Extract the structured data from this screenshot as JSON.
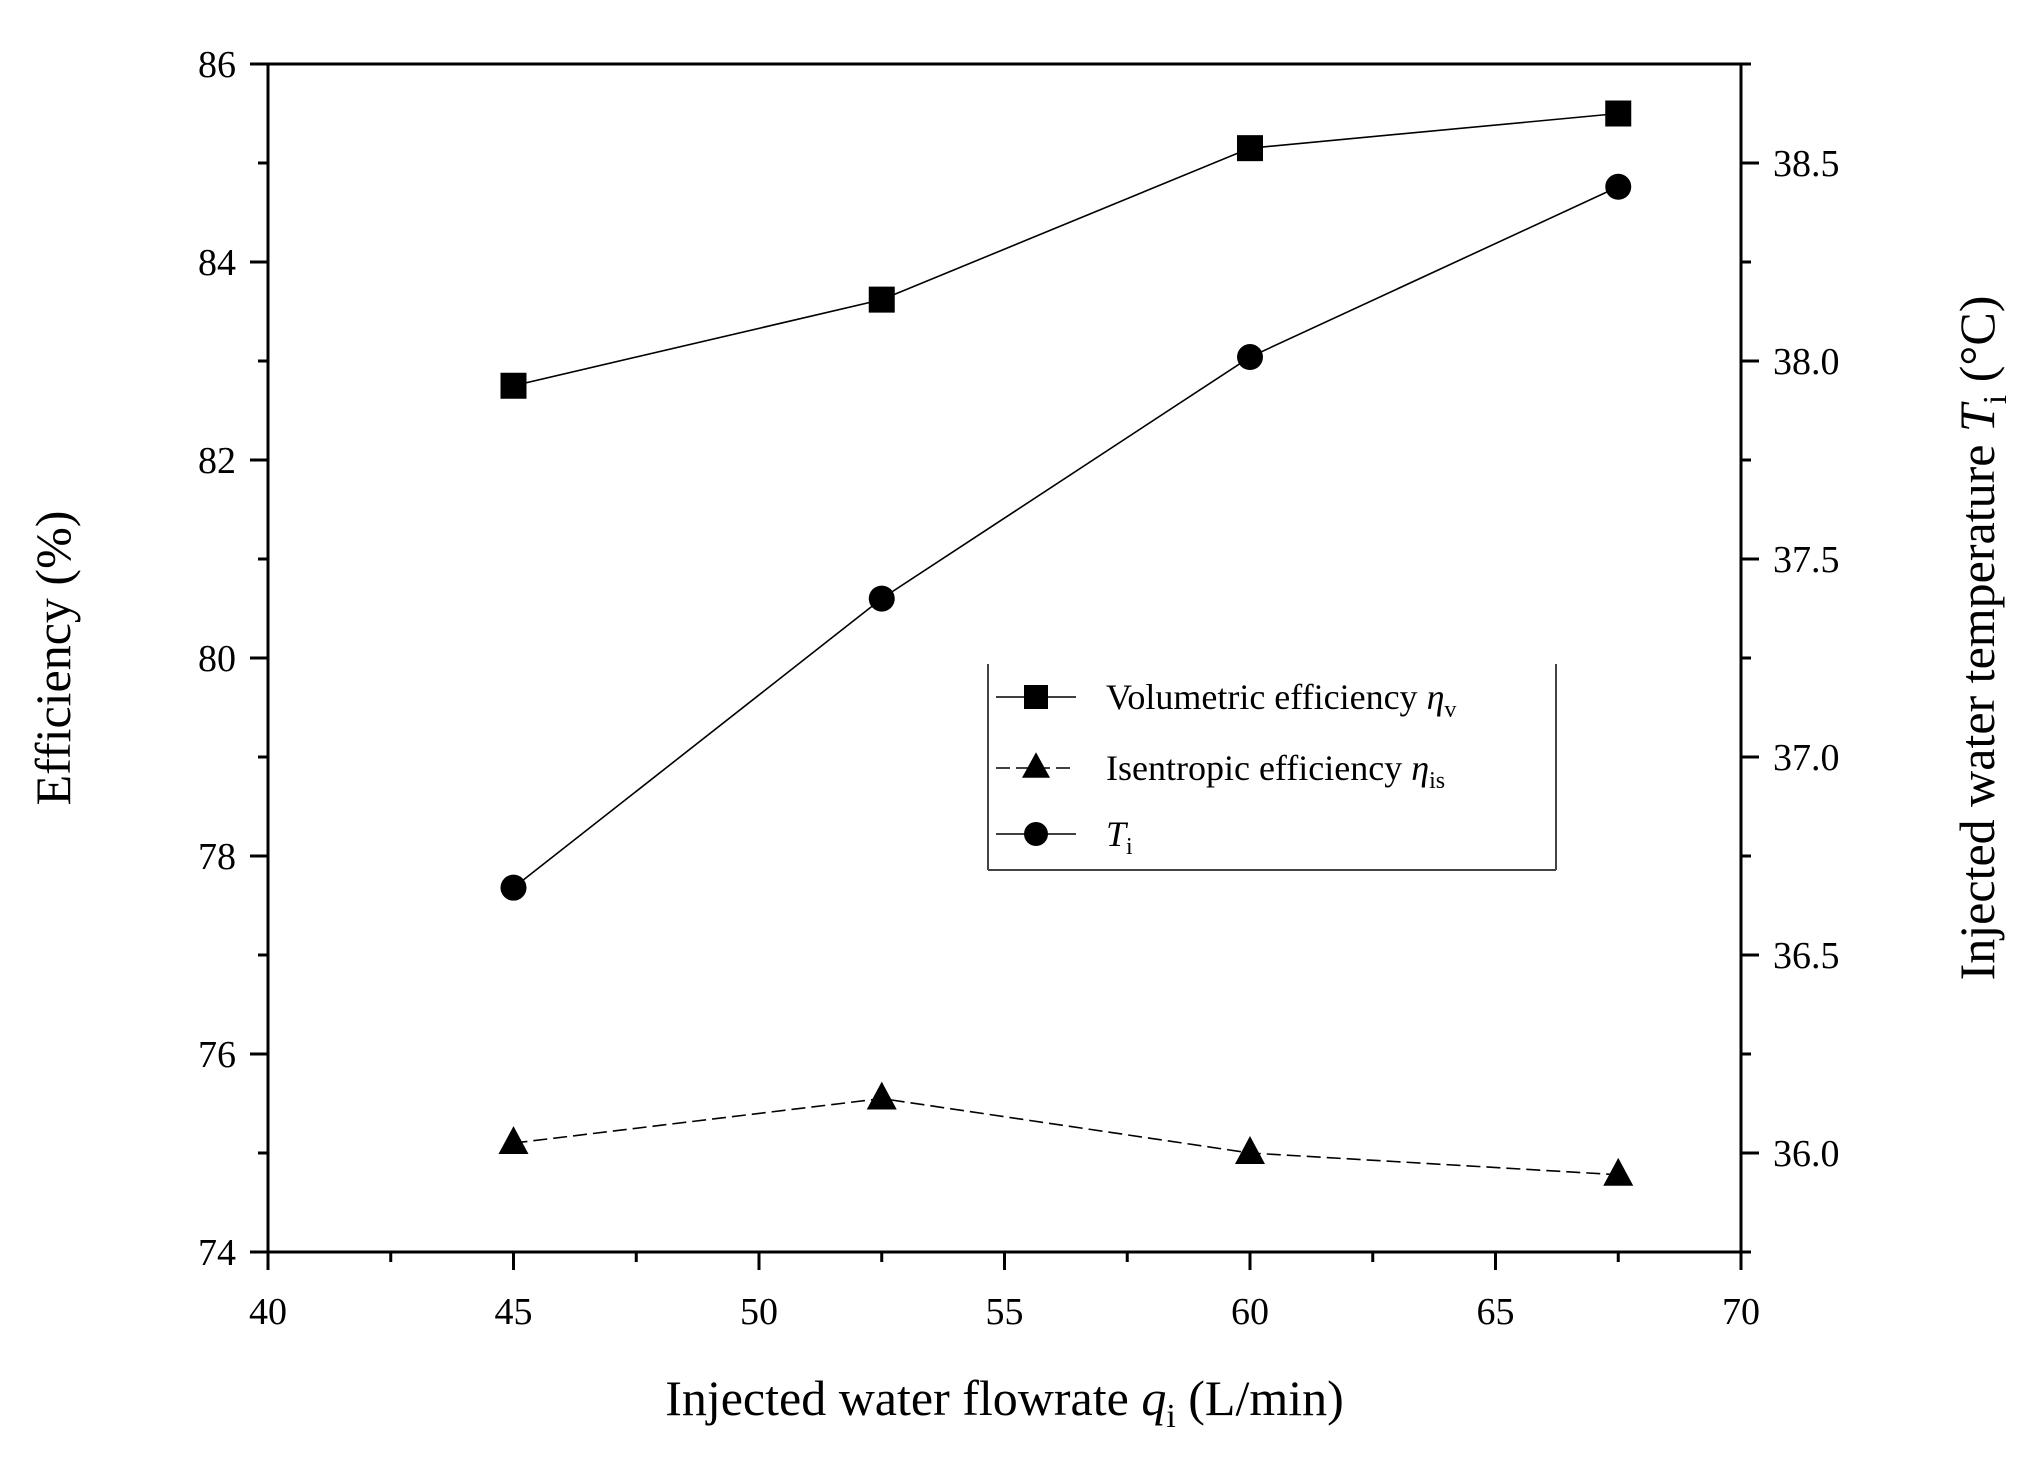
{
  "chart_data": {
    "type": "line",
    "x_axis": {
      "label_main": "Injected water flowrate ",
      "label_var": "q",
      "label_sub": "i",
      "label_unit": " (L/min)",
      "range": [
        40,
        70
      ],
      "ticks": [
        40,
        45,
        50,
        55,
        60,
        65,
        70
      ],
      "tick_labels": [
        "40",
        "45",
        "50",
        "55",
        "60",
        "65",
        "70"
      ]
    },
    "y_axis_left": {
      "label": "Efficiency (%)",
      "range": [
        74,
        86
      ],
      "ticks": [
        74,
        76,
        78,
        80,
        82,
        84,
        86
      ],
      "tick_labels": [
        "74",
        "76",
        "78",
        "80",
        "82",
        "84",
        "86"
      ]
    },
    "y_axis_right": {
      "label_main": "Injected water temperature ",
      "label_var": "T",
      "label_sub": "i",
      "label_unit": " (°C)",
      "range": [
        35.75,
        38.75
      ],
      "ticks": [
        36.0,
        36.5,
        37.0,
        37.5,
        38.0,
        38.5
      ],
      "tick_labels": [
        "36.0",
        "36.5",
        "37.0",
        "37.5",
        "38.0",
        "38.5"
      ]
    },
    "x": [
      45,
      52.5,
      60,
      67.5
    ],
    "series": [
      {
        "name": "Volumetric efficiency ηv",
        "legend_text": "Volumetric efficiency ",
        "legend_var": "η",
        "legend_sub": "v",
        "marker": "square",
        "axis": "left",
        "dash": "solid",
        "values": [
          82.75,
          83.62,
          85.15,
          85.5
        ]
      },
      {
        "name": "Isentropic efficiency ηis",
        "legend_text": "Isentropic efficiency ",
        "legend_var": "η",
        "legend_sub": "is",
        "marker": "triangle",
        "axis": "left",
        "dash": "dashed",
        "values": [
          75.1,
          75.55,
          75.0,
          74.78
        ]
      },
      {
        "name": "Ti",
        "legend_text": "",
        "legend_var": "T",
        "legend_sub": "i",
        "marker": "circle",
        "axis": "right",
        "dash": "solid",
        "values": [
          36.67,
          37.4,
          38.01,
          38.44
        ]
      }
    ],
    "legend_position": "center-right",
    "grid": false,
    "colors": {
      "line": "#000000",
      "marker": "#000000",
      "background": "#ffffff"
    }
  }
}
